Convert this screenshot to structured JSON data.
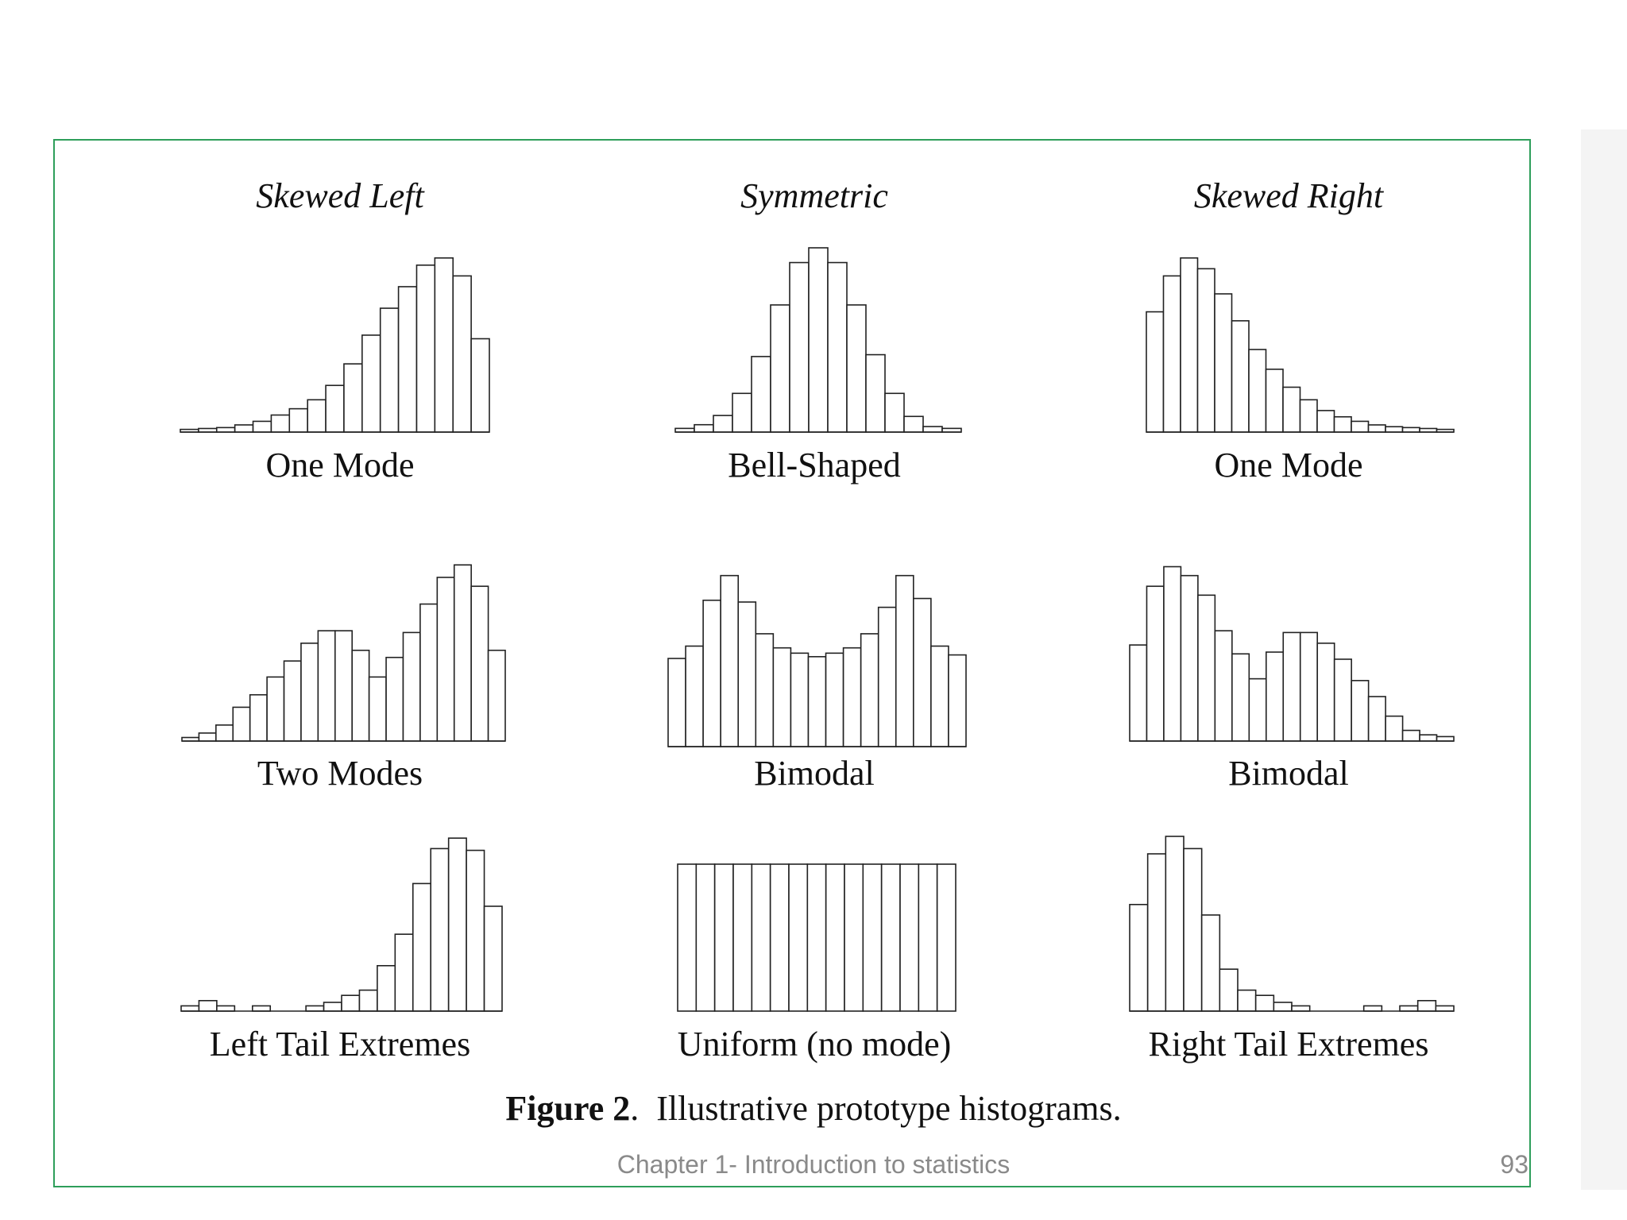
{
  "slide": {
    "footer": "Chapter 1- Introduction to statistics",
    "page_number": "93",
    "frame_color": "#2e9e5a"
  },
  "figure": {
    "caption_label": "Figure 2",
    "caption_sep": ".  ",
    "caption_text": "Illustrative prototype histograms."
  },
  "chart_data": [
    {
      "type": "bar",
      "column_title": "Skewed Left",
      "title": "One Mode",
      "values": [
        0.015,
        0.02,
        0.025,
        0.04,
        0.06,
        0.095,
        0.13,
        0.18,
        0.26,
        0.38,
        0.54,
        0.69,
        0.81,
        0.93,
        0.97,
        0.87,
        0.52
      ]
    },
    {
      "type": "bar",
      "column_title": "Symmetric",
      "title": "Bell-Shaped",
      "values": [
        0.02,
        0.04,
        0.09,
        0.21,
        0.41,
        0.69,
        0.92,
        1.0,
        0.92,
        0.69,
        0.42,
        0.21,
        0.085,
        0.03,
        0.02
      ]
    },
    {
      "type": "bar",
      "column_title": "Skewed Right",
      "title": "One Mode",
      "values": [
        0.67,
        0.87,
        0.97,
        0.91,
        0.77,
        0.62,
        0.46,
        0.35,
        0.25,
        0.18,
        0.12,
        0.085,
        0.06,
        0.04,
        0.03,
        0.025,
        0.02,
        0.015
      ]
    },
    {
      "type": "bar",
      "title": "Two Modes",
      "values": [
        0.02,
        0.045,
        0.09,
        0.19,
        0.26,
        0.36,
        0.45,
        0.55,
        0.62,
        0.62,
        0.51,
        0.36,
        0.47,
        0.61,
        0.77,
        0.92,
        0.99,
        0.87,
        0.51
      ]
    },
    {
      "type": "bar",
      "title": "Bimodal",
      "values": [
        0.5,
        0.57,
        0.83,
        0.97,
        0.82,
        0.64,
        0.56,
        0.53,
        0.51,
        0.53,
        0.56,
        0.64,
        0.79,
        0.97,
        0.84,
        0.57,
        0.52
      ]
    },
    {
      "type": "bar",
      "title": "Bimodal",
      "values": [
        0.54,
        0.87,
        0.98,
        0.93,
        0.82,
        0.62,
        0.49,
        0.35,
        0.5,
        0.61,
        0.61,
        0.55,
        0.46,
        0.34,
        0.25,
        0.14,
        0.06,
        0.035,
        0.025
      ]
    },
    {
      "type": "bar",
      "title": "Left Tail Extremes",
      "values": [
        0.03,
        0.06,
        0.03,
        0,
        0.03,
        0,
        0,
        0.03,
        0.05,
        0.09,
        0.12,
        0.26,
        0.44,
        0.73,
        0.93,
        0.99,
        0.92,
        0.6
      ]
    },
    {
      "type": "bar",
      "title": "Uniform (no mode)",
      "values": [
        1,
        1,
        1,
        1,
        1,
        1,
        1,
        1,
        1,
        1,
        1,
        1,
        1,
        1,
        1
      ]
    },
    {
      "type": "bar",
      "title": "Right Tail Extremes",
      "values": [
        0.61,
        0.9,
        1.0,
        0.93,
        0.55,
        0.24,
        0.12,
        0.09,
        0.05,
        0.03,
        0,
        0,
        0,
        0.03,
        0,
        0.03,
        0.06,
        0.03
      ]
    }
  ]
}
